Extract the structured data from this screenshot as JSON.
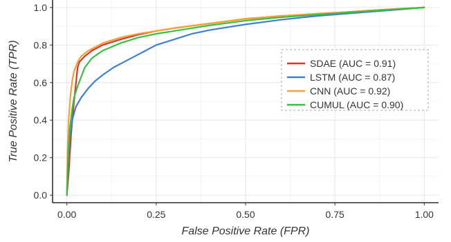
{
  "chart_data": {
    "type": "line",
    "xlabel": "False Positive Rate (FPR)",
    "ylabel": "True Positive Rate (TPR)",
    "xlim": [
      -0.04,
      1.04
    ],
    "ylim": [
      -0.04,
      1.04
    ],
    "x_ticks": [
      0.0,
      0.25,
      0.5,
      0.75,
      1.0
    ],
    "x_tick_labels": [
      "0.00",
      "0.25",
      "0.50",
      "0.75",
      "1.00"
    ],
    "y_ticks": [
      0.0,
      0.2,
      0.4,
      0.6,
      0.8,
      1.0
    ],
    "y_tick_labels": [
      "0.0",
      "0.2",
      "0.4",
      "0.6",
      "0.8",
      "1.0"
    ],
    "grid": true,
    "legend_position": "right",
    "series": [
      {
        "name": "SDAE (AUC = 0.91)",
        "color": "#d7332f",
        "points": [
          [
            0,
            0
          ],
          [
            0.005,
            0.12
          ],
          [
            0.012,
            0.33
          ],
          [
            0.02,
            0.5
          ],
          [
            0.03,
            0.68
          ],
          [
            0.035,
            0.71
          ],
          [
            0.05,
            0.74
          ],
          [
            0.07,
            0.77
          ],
          [
            0.1,
            0.8
          ],
          [
            0.15,
            0.83
          ],
          [
            0.2,
            0.855
          ],
          [
            0.25,
            0.875
          ],
          [
            0.3,
            0.89
          ],
          [
            0.4,
            0.915
          ],
          [
            0.5,
            0.94
          ],
          [
            0.6,
            0.955
          ],
          [
            0.7,
            0.965
          ],
          [
            0.8,
            0.978
          ],
          [
            0.9,
            0.99
          ],
          [
            1.0,
            1.0
          ]
        ]
      },
      {
        "name": "LSTM (AUC = 0.87)",
        "color": "#3e7fd3",
        "points": [
          [
            0,
            0
          ],
          [
            0.003,
            0.2
          ],
          [
            0.008,
            0.3
          ],
          [
            0.015,
            0.4
          ],
          [
            0.025,
            0.47
          ],
          [
            0.04,
            0.52
          ],
          [
            0.06,
            0.57
          ],
          [
            0.08,
            0.61
          ],
          [
            0.1,
            0.64
          ],
          [
            0.13,
            0.68
          ],
          [
            0.16,
            0.71
          ],
          [
            0.2,
            0.75
          ],
          [
            0.22,
            0.77
          ],
          [
            0.25,
            0.8
          ],
          [
            0.3,
            0.83
          ],
          [
            0.35,
            0.86
          ],
          [
            0.4,
            0.88
          ],
          [
            0.5,
            0.91
          ],
          [
            0.6,
            0.935
          ],
          [
            0.7,
            0.955
          ],
          [
            0.8,
            0.97
          ],
          [
            0.9,
            0.985
          ],
          [
            1.0,
            1.0
          ]
        ]
      },
      {
        "name": "CNN (AUC = 0.92)",
        "color": "#f4a032",
        "points": [
          [
            0,
            0
          ],
          [
            0.002,
            0.25
          ],
          [
            0.005,
            0.4
          ],
          [
            0.01,
            0.53
          ],
          [
            0.015,
            0.61
          ],
          [
            0.02,
            0.66
          ],
          [
            0.03,
            0.71
          ],
          [
            0.04,
            0.74
          ],
          [
            0.06,
            0.77
          ],
          [
            0.08,
            0.79
          ],
          [
            0.1,
            0.81
          ],
          [
            0.15,
            0.84
          ],
          [
            0.2,
            0.86
          ],
          [
            0.25,
            0.875
          ],
          [
            0.3,
            0.89
          ],
          [
            0.4,
            0.915
          ],
          [
            0.5,
            0.94
          ],
          [
            0.6,
            0.955
          ],
          [
            0.7,
            0.967
          ],
          [
            0.8,
            0.978
          ],
          [
            0.9,
            0.99
          ],
          [
            1.0,
            1.0
          ]
        ]
      },
      {
        "name": "CUMUL (AUC = 0.90)",
        "color": "#35c140",
        "points": [
          [
            0,
            0
          ],
          [
            0.003,
            0.2
          ],
          [
            0.008,
            0.35
          ],
          [
            0.015,
            0.46
          ],
          [
            0.02,
            0.52
          ],
          [
            0.03,
            0.58
          ],
          [
            0.04,
            0.63
          ],
          [
            0.05,
            0.68
          ],
          [
            0.07,
            0.73
          ],
          [
            0.1,
            0.77
          ],
          [
            0.15,
            0.81
          ],
          [
            0.2,
            0.84
          ],
          [
            0.25,
            0.86
          ],
          [
            0.3,
            0.875
          ],
          [
            0.4,
            0.905
          ],
          [
            0.5,
            0.93
          ],
          [
            0.6,
            0.948
          ],
          [
            0.7,
            0.962
          ],
          [
            0.8,
            0.975
          ],
          [
            0.9,
            0.988
          ],
          [
            1.0,
            1.0
          ]
        ]
      }
    ]
  }
}
